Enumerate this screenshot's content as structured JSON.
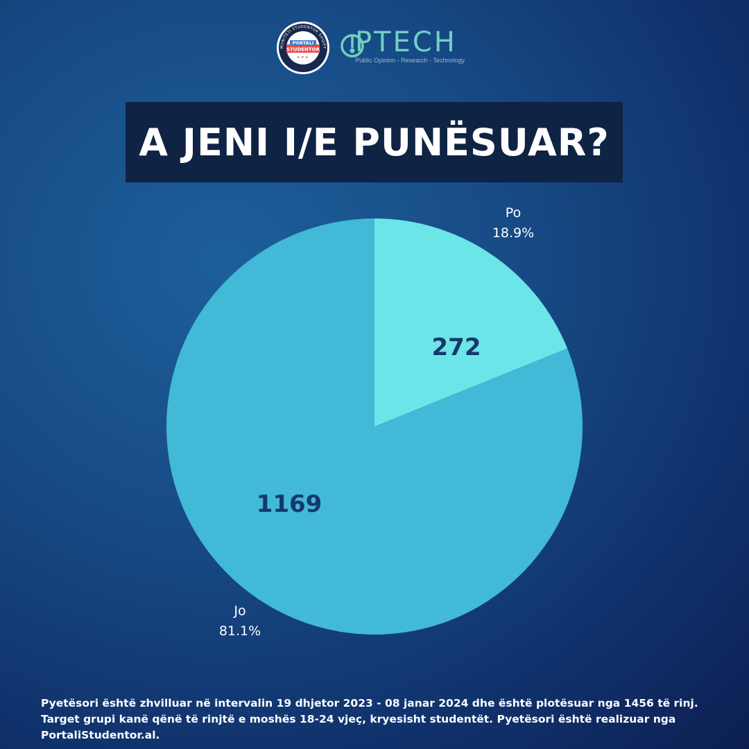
{
  "header": {
    "seal_text_top": "KOMUNITETI STUDENTOR SHQIPTAR",
    "seal_line1": "PORTALI",
    "seal_line2": "STUDENTOR",
    "brand": "PTECH",
    "brand_tagline": "Public Opinion - Research - Technology"
  },
  "title": "A JENI I/E PUNËSUAR?",
  "chart_data": {
    "type": "pie",
    "title": "A JENI I/E PUNËSUAR?",
    "slices": [
      {
        "label": "Po",
        "value": 272,
        "percent": "18.9%",
        "color": "#6ce5e8"
      },
      {
        "label": "Jo",
        "value": 1169,
        "percent": "81.1%",
        "color": "#42b9d6"
      }
    ],
    "value_label_color": "#15386b",
    "outer_label_color": "#ffffff"
  },
  "footer": {
    "note": "Pyetësori është zhvilluar në intervalin 19 dhjetor 2023 - 08 janar 2024 dhe është plotësuar nga 1456 të rinj. Target grupi kanë qënë të rinjtë e moshës 18-24 vjeç, kryesisht studentët. Pyetësori është realizuar nga PortaliStudentor.al."
  }
}
